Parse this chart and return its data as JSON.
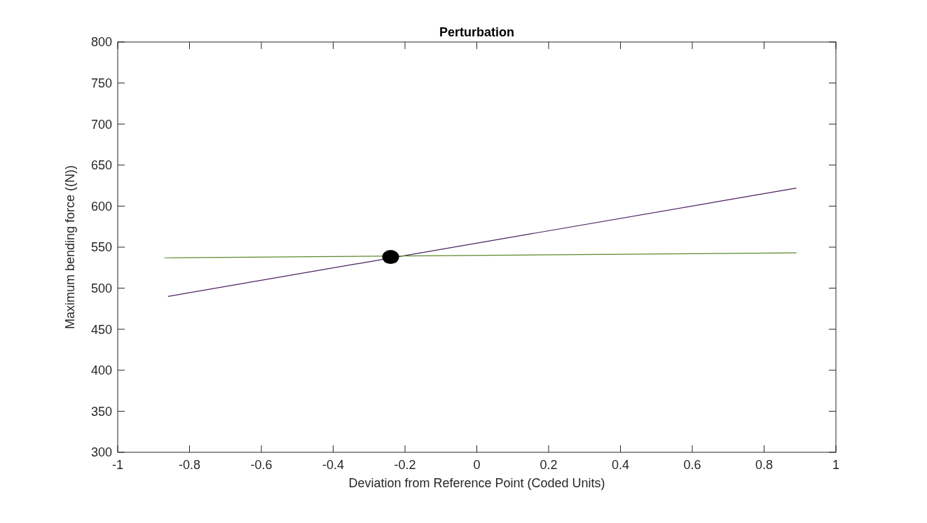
{
  "chart_data": {
    "type": "line",
    "title": "Perturbation",
    "xlabel": "Deviation from Reference Point (Coded Units)",
    "ylabel": "Maximum bending force ((N))",
    "xlim": [
      -1,
      1
    ],
    "xticks": [
      -1,
      -0.8,
      -0.6,
      -0.4,
      -0.2,
      0,
      0.2,
      0.4,
      0.6,
      0.8,
      1
    ],
    "ylim": [
      300,
      800
    ],
    "yticks": [
      300,
      350,
      400,
      450,
      500,
      550,
      600,
      650,
      700,
      750,
      800
    ],
    "grid": false,
    "marker": "none",
    "line_style": "solid",
    "series": [
      {
        "color": "#4b1f5e",
        "x": [
          -0.86,
          0.89
        ],
        "values": [
          490,
          622
        ]
      },
      {
        "color": "#5a8a2a",
        "x": [
          -0.87,
          0.89
        ],
        "values": [
          537,
          543
        ]
      },
      {
        "type": "scatter",
        "color": "#000000",
        "marker": "circle",
        "x": [
          -0.24
        ],
        "values": [
          538
        ]
      }
    ]
  }
}
